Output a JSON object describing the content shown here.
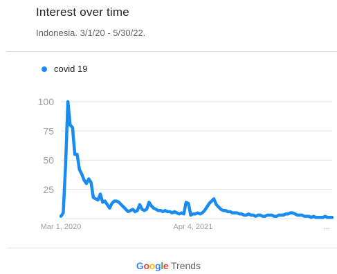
{
  "header": {
    "title": "Interest over time",
    "subtitle": "Indonesia. 3/1/20 - 5/30/22."
  },
  "legend": {
    "label": "covid 19",
    "color": "#1a8cf0"
  },
  "footer": {
    "brand_letters": [
      {
        "ch": "G",
        "color": "#4285f4"
      },
      {
        "ch": "o",
        "color": "#ea4335"
      },
      {
        "ch": "o",
        "color": "#fbbc05"
      },
      {
        "ch": "g",
        "color": "#4285f4"
      },
      {
        "ch": "l",
        "color": "#34a853"
      },
      {
        "ch": "e",
        "color": "#ea4335"
      }
    ],
    "product": "Trends"
  },
  "colors": {
    "line": "#1a8cf0",
    "grid": "#e0e0e0",
    "tick": "#9e9e9e"
  },
  "chart_data": {
    "type": "line",
    "title": "Interest over time",
    "subtitle": "Indonesia. 3/1/20 - 5/30/22.",
    "ylim": [
      0,
      100
    ],
    "yticks": [
      25,
      50,
      75,
      100
    ],
    "xlim": [
      "2020-03-01",
      "2022-05-29"
    ],
    "xtick_labels": [
      {
        "date": "2020-03-01",
        "label": "Mar 1, 2020"
      },
      {
        "date": "2021-04-04",
        "label": "Apr 4, 2021"
      }
    ],
    "x_more_label": "...",
    "grid": true,
    "legend_position": "top-left",
    "series": [
      {
        "name": "covid 19",
        "color": "#1a8cf0",
        "points": [
          [
            "2020-03-01",
            2
          ],
          [
            "2020-03-08",
            5
          ],
          [
            "2020-03-15",
            45
          ],
          [
            "2020-03-22",
            100
          ],
          [
            "2020-03-29",
            80
          ],
          [
            "2020-04-05",
            78
          ],
          [
            "2020-04-12",
            55
          ],
          [
            "2020-04-19",
            55
          ],
          [
            "2020-04-26",
            42
          ],
          [
            "2020-05-03",
            38
          ],
          [
            "2020-05-10",
            33
          ],
          [
            "2020-05-17",
            30
          ],
          [
            "2020-05-24",
            34
          ],
          [
            "2020-05-31",
            31
          ],
          [
            "2020-06-07",
            18
          ],
          [
            "2020-06-14",
            17
          ],
          [
            "2020-06-21",
            16
          ],
          [
            "2020-06-28",
            21
          ],
          [
            "2020-07-05",
            14
          ],
          [
            "2020-07-12",
            15
          ],
          [
            "2020-07-19",
            12
          ],
          [
            "2020-07-26",
            9
          ],
          [
            "2020-08-02",
            13
          ],
          [
            "2020-08-09",
            15
          ],
          [
            "2020-08-16",
            15
          ],
          [
            "2020-08-23",
            14
          ],
          [
            "2020-08-30",
            12
          ],
          [
            "2020-09-06",
            10
          ],
          [
            "2020-09-13",
            8
          ],
          [
            "2020-09-20",
            6
          ],
          [
            "2020-09-27",
            7
          ],
          [
            "2020-10-04",
            8
          ],
          [
            "2020-10-11",
            6
          ],
          [
            "2020-10-18",
            7
          ],
          [
            "2020-10-25",
            12
          ],
          [
            "2020-11-01",
            8
          ],
          [
            "2020-11-08",
            7
          ],
          [
            "2020-11-15",
            8
          ],
          [
            "2020-11-22",
            14
          ],
          [
            "2020-11-29",
            11
          ],
          [
            "2020-12-06",
            9
          ],
          [
            "2020-12-13",
            8
          ],
          [
            "2020-12-20",
            7
          ],
          [
            "2020-12-27",
            7
          ],
          [
            "2021-01-03",
            6
          ],
          [
            "2021-01-10",
            7
          ],
          [
            "2021-01-17",
            6
          ],
          [
            "2021-01-24",
            6
          ],
          [
            "2021-01-31",
            5
          ],
          [
            "2021-02-07",
            6
          ],
          [
            "2021-02-14",
            5
          ],
          [
            "2021-02-21",
            4
          ],
          [
            "2021-02-28",
            5
          ],
          [
            "2021-03-07",
            4
          ],
          [
            "2021-03-14",
            14
          ],
          [
            "2021-03-21",
            13
          ],
          [
            "2021-03-28",
            3
          ],
          [
            "2021-04-04",
            4
          ],
          [
            "2021-04-11",
            4
          ],
          [
            "2021-04-18",
            5
          ],
          [
            "2021-04-25",
            4
          ],
          [
            "2021-05-02",
            5
          ],
          [
            "2021-05-09",
            7
          ],
          [
            "2021-05-16",
            10
          ],
          [
            "2021-05-23",
            13
          ],
          [
            "2021-05-30",
            15
          ],
          [
            "2021-06-06",
            17
          ],
          [
            "2021-06-13",
            12
          ],
          [
            "2021-06-20",
            10
          ],
          [
            "2021-06-27",
            8
          ],
          [
            "2021-07-04",
            7
          ],
          [
            "2021-07-11",
            7
          ],
          [
            "2021-07-18",
            6
          ],
          [
            "2021-07-25",
            6
          ],
          [
            "2021-08-01",
            5
          ],
          [
            "2021-08-08",
            5
          ],
          [
            "2021-08-15",
            5
          ],
          [
            "2021-08-22",
            4
          ],
          [
            "2021-08-29",
            4
          ],
          [
            "2021-09-05",
            3
          ],
          [
            "2021-09-12",
            3
          ],
          [
            "2021-09-19",
            4
          ],
          [
            "2021-09-26",
            3
          ],
          [
            "2021-10-03",
            3
          ],
          [
            "2021-10-10",
            2
          ],
          [
            "2021-10-17",
            3
          ],
          [
            "2021-10-24",
            3
          ],
          [
            "2021-10-31",
            2
          ],
          [
            "2021-11-07",
            2
          ],
          [
            "2021-11-14",
            3
          ],
          [
            "2021-11-21",
            3
          ],
          [
            "2021-11-28",
            3
          ],
          [
            "2021-12-05",
            2
          ],
          [
            "2021-12-12",
            2
          ],
          [
            "2021-12-19",
            3
          ],
          [
            "2021-12-26",
            3
          ],
          [
            "2022-01-02",
            3
          ],
          [
            "2022-01-09",
            4
          ],
          [
            "2022-01-16",
            4
          ],
          [
            "2022-01-23",
            5
          ],
          [
            "2022-01-30",
            5
          ],
          [
            "2022-02-06",
            4
          ],
          [
            "2022-02-13",
            3
          ],
          [
            "2022-02-20",
            3
          ],
          [
            "2022-02-27",
            3
          ],
          [
            "2022-03-06",
            2
          ],
          [
            "2022-03-13",
            2
          ],
          [
            "2022-03-20",
            2
          ],
          [
            "2022-03-27",
            1
          ],
          [
            "2022-04-03",
            2
          ],
          [
            "2022-04-10",
            1
          ],
          [
            "2022-04-17",
            1
          ],
          [
            "2022-04-24",
            1
          ],
          [
            "2022-05-01",
            1
          ],
          [
            "2022-05-08",
            2
          ],
          [
            "2022-05-15",
            1
          ],
          [
            "2022-05-22",
            1
          ],
          [
            "2022-05-29",
            1
          ]
        ]
      }
    ]
  }
}
